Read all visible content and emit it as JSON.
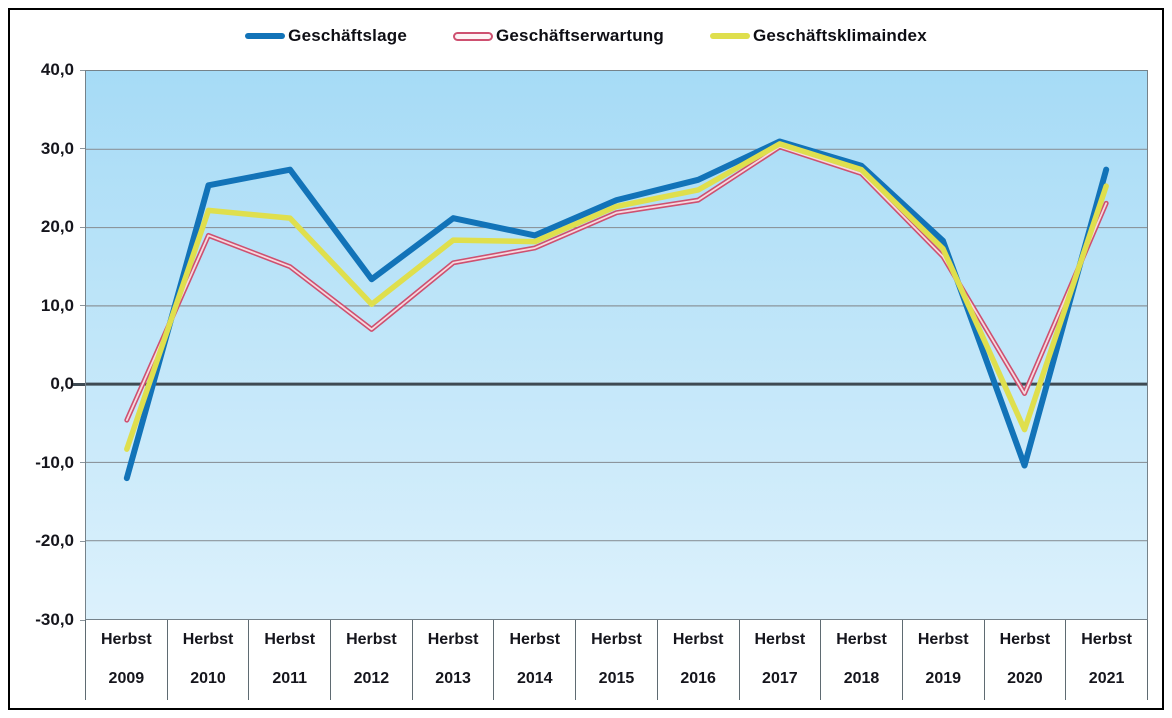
{
  "colors": {
    "plot_bg_top": "#A6DBF6",
    "plot_bg_bottom": "#DCF1FC",
    "gridline": "#8C959C",
    "zero_line": "#3E4A52",
    "frame_border": "#000000",
    "axis_text": "#15151C",
    "plot_border": "#75828A",
    "divider": "#5F6B72",
    "series_blue": "#1273B8",
    "series_pink": "#CE5070",
    "series_pink_inner": "#F6D9E0",
    "series_yellow": "#DFDF4D"
  },
  "chart_data": {
    "type": "line",
    "title": "",
    "legend_position": "top",
    "grid": true,
    "zero_line": true,
    "ylim": [
      -30,
      40
    ],
    "yticks": [
      {
        "value": 40,
        "label": "40,0"
      },
      {
        "value": 30,
        "label": "30,0"
      },
      {
        "value": 20,
        "label": "20,0"
      },
      {
        "value": 10,
        "label": "10,0"
      },
      {
        "value": 0,
        "label": "0,0"
      },
      {
        "value": -10,
        "label": "-10,0"
      },
      {
        "value": -20,
        "label": "-20,0"
      },
      {
        "value": -30,
        "label": "-30,0"
      }
    ],
    "categories": [
      {
        "season": "Herbst",
        "year": "2009"
      },
      {
        "season": "Herbst",
        "year": "2010"
      },
      {
        "season": "Herbst",
        "year": "2011"
      },
      {
        "season": "Herbst",
        "year": "2012"
      },
      {
        "season": "Herbst",
        "year": "2013"
      },
      {
        "season": "Herbst",
        "year": "2014"
      },
      {
        "season": "Herbst",
        "year": "2015"
      },
      {
        "season": "Herbst",
        "year": "2016"
      },
      {
        "season": "Herbst",
        "year": "2017"
      },
      {
        "season": "Herbst",
        "year": "2018"
      },
      {
        "season": "Herbst",
        "year": "2019"
      },
      {
        "season": "Herbst",
        "year": "2020"
      },
      {
        "season": "Herbst",
        "year": "2021"
      }
    ],
    "series": [
      {
        "name": "Geschäftslage",
        "style": "solid",
        "color": "#1273B8",
        "width": 6,
        "values": [
          -12.0,
          25.4,
          27.4,
          13.4,
          21.2,
          19.0,
          23.5,
          26.1,
          31.0,
          27.9,
          18.3,
          -10.4,
          27.4
        ]
      },
      {
        "name": "Geschäftserwartung",
        "style": "double-outline",
        "color": "#CE5070",
        "inner_color": "#F6D9E0",
        "width": 5,
        "values": [
          -4.6,
          19.0,
          15.0,
          7.0,
          15.5,
          17.4,
          21.9,
          23.5,
          30.3,
          26.9,
          16.3,
          -1.2,
          23.1
        ]
      },
      {
        "name": "Geschäftsklimaindex",
        "style": "solid",
        "color": "#DFDF4D",
        "width": 5.5,
        "values": [
          -8.3,
          22.2,
          21.2,
          10.2,
          18.4,
          18.2,
          22.7,
          24.8,
          30.7,
          27.4,
          17.3,
          -5.8,
          25.3
        ]
      }
    ]
  }
}
